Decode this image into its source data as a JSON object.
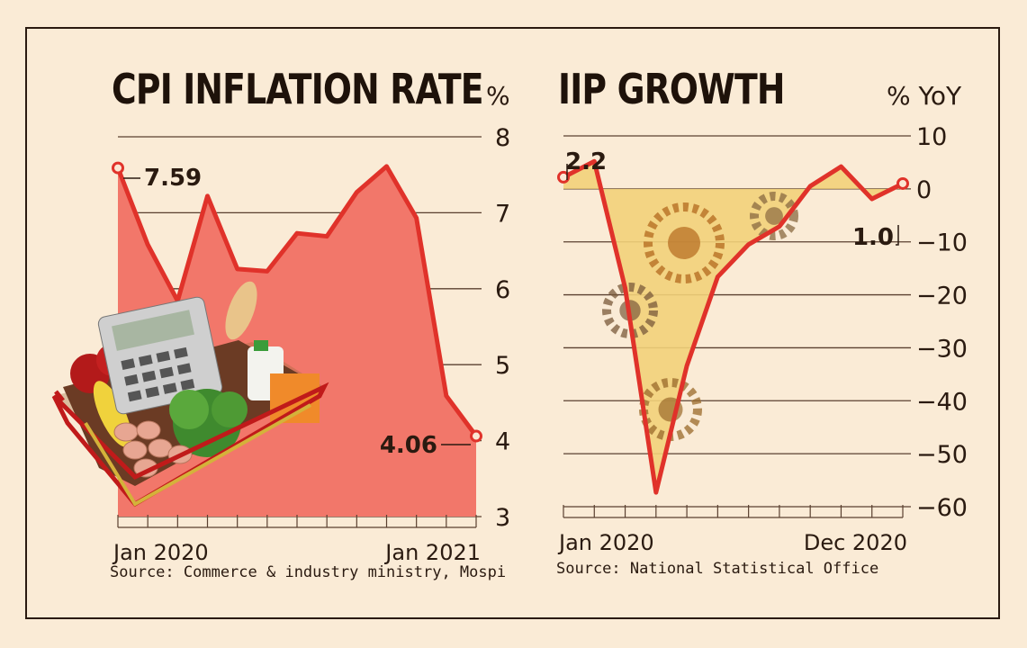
{
  "chart_data": [
    {
      "type": "area",
      "title": "CPI INFLATION RATE",
      "unit": "%",
      "ylim": [
        3,
        8
      ],
      "yticks": [
        "8",
        "7",
        "6",
        "5",
        "4",
        "3"
      ],
      "xtick_labels": [
        "Jan 2020",
        "Jan 2021"
      ],
      "x": [
        "Jan 2020",
        "Feb 2020",
        "Mar 2020",
        "Apr 2020",
        "May 2020",
        "Jun 2020",
        "Jul 2020",
        "Aug 2020",
        "Sep 2020",
        "Oct 2020",
        "Nov 2020",
        "Dec 2020",
        "Jan 2021"
      ],
      "values": [
        7.59,
        6.58,
        5.84,
        7.22,
        6.26,
        6.23,
        6.73,
        6.69,
        7.27,
        7.61,
        6.93,
        4.59,
        4.06
      ],
      "annotations": [
        {
          "text": "7.59",
          "point": 0
        },
        {
          "text": "4.06",
          "point": 12
        }
      ],
      "source": "Source: Commerce & industry ministry, Mospi",
      "colors": {
        "line": "#e0322a",
        "fill": "#f2776a"
      }
    },
    {
      "type": "area",
      "title": "IIP GROWTH",
      "unit": "% YoY",
      "ylim": [
        -60,
        10
      ],
      "yticks": [
        "10",
        "0",
        "-10",
        "-20",
        "-30",
        "-40",
        "-50",
        "-60"
      ],
      "xtick_labels": [
        "Jan 2020",
        "Dec 2020"
      ],
      "x": [
        "Jan 2020",
        "Feb 2020",
        "Mar 2020",
        "Apr 2020",
        "May 2020",
        "Jun 2020",
        "Jul 2020",
        "Aug 2020",
        "Sep 2020",
        "Oct 2020",
        "Nov 2020",
        "Dec 2020"
      ],
      "values": [
        2.2,
        5.2,
        -18.7,
        -57.3,
        -33.4,
        -16.6,
        -10.5,
        -7.1,
        0.5,
        4.2,
        -1.9,
        1.0
      ],
      "annotations": [
        {
          "text": "2.2",
          "point": 0
        },
        {
          "text": "1.0",
          "point": 11
        }
      ],
      "source": "Source: National Statistical Office",
      "colors": {
        "line": "#e0322a",
        "fill": "#f2d27a"
      }
    }
  ]
}
